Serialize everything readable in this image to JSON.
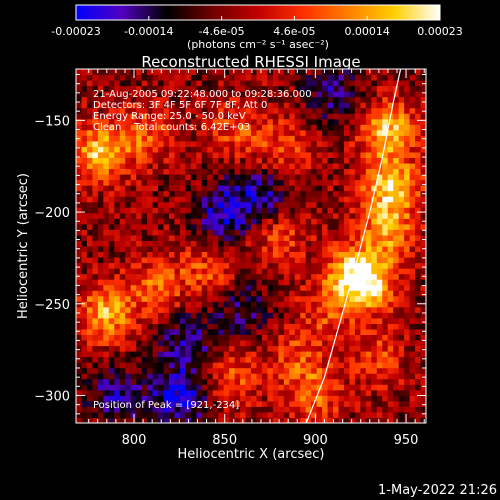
{
  "colorbar": {
    "min": -0.00023,
    "max": 0.00023,
    "tick_labels": [
      "-0.00023",
      "-0.00014",
      "-4.6e-05",
      "4.6e-05",
      "0.00014",
      "0.00023"
    ],
    "unit_label": "(photons cm⁻² s⁻¹ asec⁻²)",
    "stops": [
      "#0000ff",
      "#5000c0",
      "#000000",
      "#700000",
      "#c00000",
      "#ff3000",
      "#ff8000",
      "#ffd000",
      "#ffffff"
    ]
  },
  "chart_data": {
    "type": "heatmap",
    "title": "Reconstructed RHESSI Image",
    "xlabel": "Heliocentric X (arcsec)",
    "ylabel": "Heliocentric Y (arcsec)",
    "xlim": [
      768,
      961
    ],
    "ylim": [
      -315,
      -122
    ],
    "xticks": [
      800,
      850,
      900,
      950
    ],
    "yticks": [
      -300,
      -250,
      -200,
      -150
    ],
    "xtick_labels": [
      "800",
      "850",
      "900",
      "950"
    ],
    "ytick_labels": [
      "−300",
      "−250",
      "−200",
      "−150"
    ],
    "grid": false,
    "limb_curve": [
      [
        895,
        -315
      ],
      [
        905,
        -290
      ],
      [
        915,
        -255
      ],
      [
        922,
        -230
      ],
      [
        930,
        -200
      ],
      [
        937,
        -170
      ],
      [
        943,
        -140
      ],
      [
        947,
        -122
      ]
    ],
    "peak": [
      921,
      -234
    ],
    "emission_blobs": [
      {
        "x": 941,
        "y": -185,
        "intensity": 0.00022
      },
      {
        "x": 940,
        "y": -155,
        "intensity": 0.0002
      },
      {
        "x": 921,
        "y": -234,
        "intensity": 0.00021
      },
      {
        "x": 930,
        "y": -240,
        "intensity": 0.00016
      },
      {
        "x": 940,
        "y": -210,
        "intensity": 0.00016
      },
      {
        "x": 780,
        "y": -168,
        "intensity": 0.0002
      },
      {
        "x": 785,
        "y": -255,
        "intensity": 0.00019
      },
      {
        "x": 812,
        "y": -240,
        "intensity": 0.00012
      },
      {
        "x": 840,
        "y": -232,
        "intensity": 0.00011
      },
      {
        "x": 805,
        "y": -158,
        "intensity": 0.00012
      },
      {
        "x": 855,
        "y": -155,
        "intensity": 0.0001
      },
      {
        "x": 882,
        "y": -165,
        "intensity": 0.00011
      },
      {
        "x": 880,
        "y": -215,
        "intensity": 0.0001
      },
      {
        "x": 855,
        "y": -290,
        "intensity": 0.00011
      },
      {
        "x": 900,
        "y": -300,
        "intensity": 0.00012
      },
      {
        "x": 935,
        "y": -280,
        "intensity": 0.0001
      },
      {
        "x": 905,
        "y": -255,
        "intensity": 9e-05
      },
      {
        "x": 890,
        "y": -280,
        "intensity": 0.0001
      }
    ],
    "absorption_blobs": [
      {
        "x": 850,
        "y": -200,
        "intensity": -0.00015
      },
      {
        "x": 825,
        "y": -300,
        "intensity": -0.00018
      },
      {
        "x": 860,
        "y": -252,
        "intensity": -0.0001
      },
      {
        "x": 870,
        "y": -190,
        "intensity": -0.00012
      },
      {
        "x": 790,
        "y": -300,
        "intensity": -0.00012
      },
      {
        "x": 910,
        "y": -135,
        "intensity": -0.0001
      },
      {
        "x": 830,
        "y": -270,
        "intensity": -0.00012
      }
    ]
  },
  "info_lines": [
    "21-Aug-2005 09:22:48.000 to 09:28:36.000",
    "Detectors: 3F 4F 5F 6F 7F 8F, Att 0",
    "Energy Range: 25.0 - 50.0 keV",
    "Clean    Total counts: 6.42E+03"
  ],
  "peak_label": "Position of Peak = [921,-234]",
  "timestamp": "1-May-2022 21:26"
}
